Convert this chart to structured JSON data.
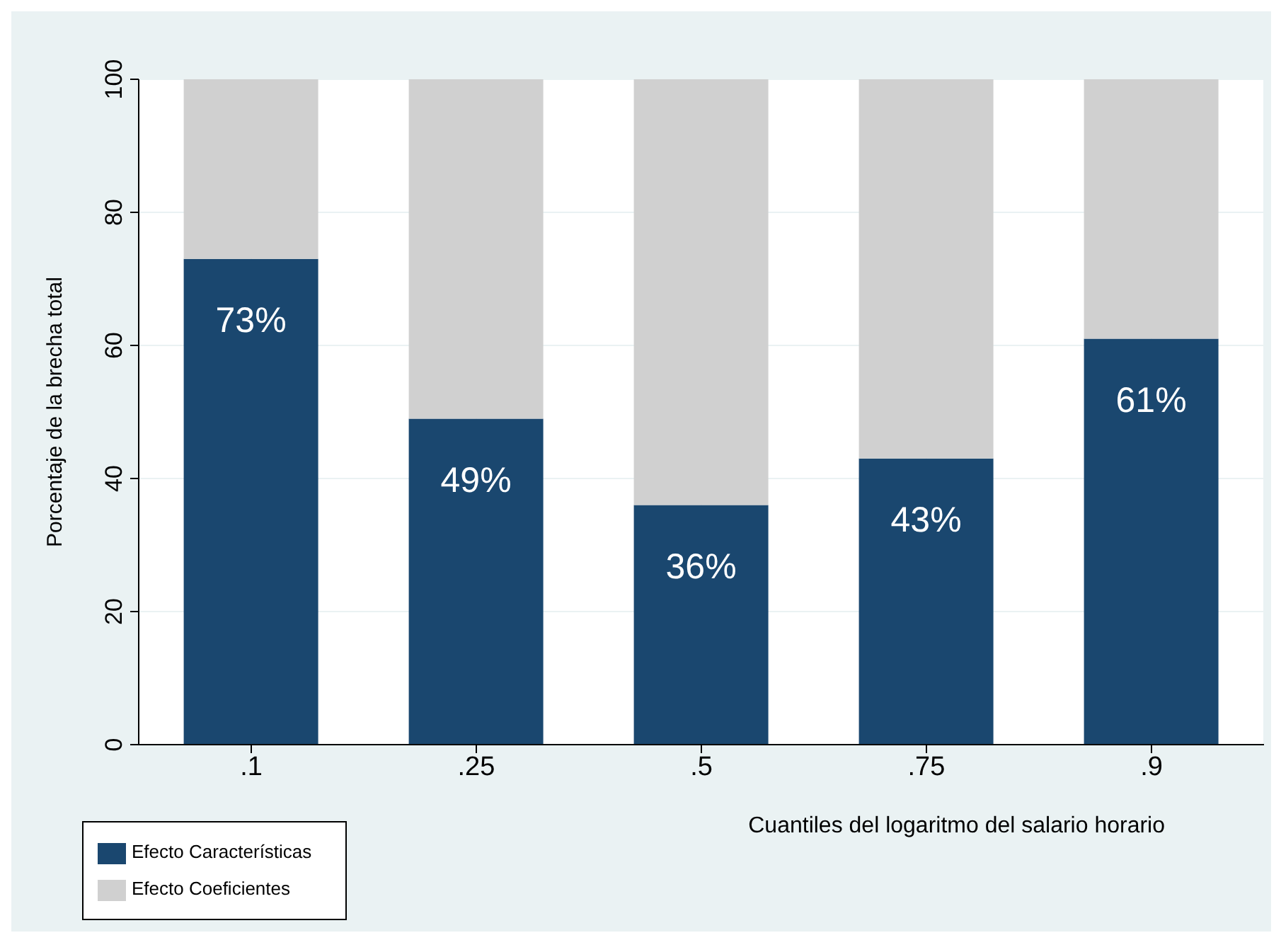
{
  "chart_data": {
    "type": "bar",
    "stacked": true,
    "ylabel": "Porcentaje de la brecha total",
    "xlabel": "Cuantiles del logaritmo del salario horario",
    "categories": [
      ".1",
      ".25",
      ".5",
      ".75",
      ".9"
    ],
    "series": [
      {
        "name": "Efecto Características",
        "color": "#1a476f",
        "values": [
          73,
          49,
          36,
          43,
          61
        ],
        "value_labels": [
          "73%",
          "49%",
          "36%",
          "43%",
          "61%"
        ]
      },
      {
        "name": "Efecto Coeficientes",
        "color": "#d0d0d0",
        "values": [
          27,
          51,
          64,
          57,
          39
        ]
      }
    ],
    "ylim": [
      0,
      100
    ],
    "yticks": [
      0,
      20,
      40,
      60,
      80,
      100
    ],
    "grid": true,
    "legend": "bottom left"
  }
}
